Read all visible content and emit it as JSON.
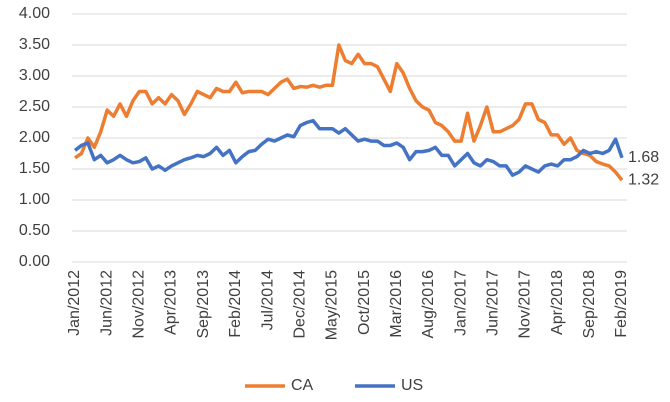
{
  "chart_data": {
    "type": "line",
    "categories": [
      "Jan/2012",
      null,
      null,
      null,
      null,
      "Jun/2012",
      null,
      null,
      null,
      null,
      "Nov/2012",
      null,
      null,
      null,
      null,
      "Apr/2013",
      null,
      null,
      null,
      null,
      "Sep/2013",
      null,
      null,
      null,
      null,
      "Feb/2014",
      null,
      null,
      null,
      null,
      "Jul/2014",
      null,
      null,
      null,
      null,
      "Dec/2014",
      null,
      null,
      null,
      null,
      "May/2015",
      null,
      null,
      null,
      null,
      "Oct/2015",
      null,
      null,
      null,
      null,
      "Mar/2016",
      null,
      null,
      null,
      null,
      "Aug/2016",
      null,
      null,
      null,
      null,
      "Jan/2017",
      null,
      null,
      null,
      null,
      "Jun/2017",
      null,
      null,
      null,
      null,
      "Nov/2017",
      null,
      null,
      null,
      null,
      "Apr/2018",
      null,
      null,
      null,
      null,
      "Sep/2018",
      null,
      null,
      null,
      null,
      "Feb/2019"
    ],
    "series": [
      {
        "name": "CA",
        "color": "#ed7d31",
        "values": [
          1.68,
          1.75,
          2.0,
          1.85,
          2.1,
          2.45,
          2.35,
          2.55,
          2.35,
          2.6,
          2.75,
          2.75,
          2.55,
          2.65,
          2.55,
          2.7,
          2.6,
          2.38,
          2.55,
          2.75,
          2.7,
          2.65,
          2.8,
          2.75,
          2.75,
          2.9,
          2.73,
          2.75,
          2.75,
          2.75,
          2.7,
          2.8,
          2.9,
          2.95,
          2.8,
          2.83,
          2.82,
          2.85,
          2.82,
          2.85,
          2.85,
          3.5,
          3.25,
          3.2,
          3.35,
          3.2,
          3.2,
          3.15,
          2.95,
          2.75,
          3.2,
          3.05,
          2.8,
          2.6,
          2.5,
          2.45,
          2.25,
          2.2,
          2.1,
          1.95,
          1.95,
          2.4,
          1.95,
          2.2,
          2.5,
          2.1,
          2.1,
          2.15,
          2.2,
          2.3,
          2.55,
          2.55,
          2.3,
          2.25,
          2.05,
          2.05,
          1.9,
          2.0,
          1.8,
          1.75,
          1.72,
          1.62,
          1.58,
          1.55,
          1.45,
          1.32
        ]
      },
      {
        "name": "US",
        "color": "#4472c4",
        "values": [
          1.8,
          1.88,
          1.92,
          1.65,
          1.72,
          1.6,
          1.65,
          1.72,
          1.65,
          1.6,
          1.62,
          1.68,
          1.5,
          1.55,
          1.48,
          1.55,
          1.6,
          1.65,
          1.68,
          1.72,
          1.7,
          1.75,
          1.85,
          1.72,
          1.8,
          1.6,
          1.7,
          1.78,
          1.8,
          1.9,
          1.98,
          1.95,
          2.0,
          2.05,
          2.02,
          2.2,
          2.25,
          2.28,
          2.15,
          2.15,
          2.15,
          2.08,
          2.15,
          2.05,
          1.95,
          1.98,
          1.95,
          1.95,
          1.88,
          1.88,
          1.92,
          1.85,
          1.65,
          1.78,
          1.78,
          1.8,
          1.85,
          1.72,
          1.72,
          1.55,
          1.65,
          1.75,
          1.6,
          1.55,
          1.65,
          1.62,
          1.55,
          1.55,
          1.4,
          1.45,
          1.55,
          1.5,
          1.45,
          1.55,
          1.58,
          1.55,
          1.65,
          1.65,
          1.7,
          1.8,
          1.75,
          1.78,
          1.75,
          1.8,
          1.98,
          1.68
        ]
      }
    ],
    "ylim": [
      0,
      4
    ],
    "yticks": [
      {
        "value": 0,
        "label": "0.00"
      },
      {
        "value": 0.5,
        "label": "0.50"
      },
      {
        "value": 1,
        "label": "1.00"
      },
      {
        "value": 1.5,
        "label": "1.50"
      },
      {
        "value": 2,
        "label": "2.00"
      },
      {
        "value": 2.5,
        "label": "2.50"
      },
      {
        "value": 3,
        "label": "3.00"
      },
      {
        "value": 3.5,
        "label": "3.50"
      },
      {
        "value": 4,
        "label": "4.00"
      }
    ],
    "grid": true,
    "legend": "bottom"
  }
}
